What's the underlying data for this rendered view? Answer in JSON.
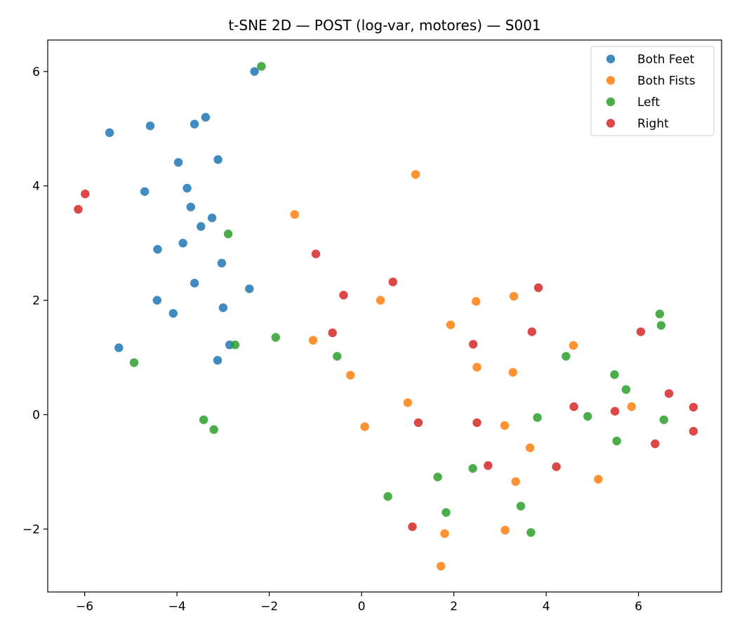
{
  "chart_data": {
    "type": "scatter",
    "title": "t-SNE 2D — POST (log-var, motores) — S001",
    "xlabel": "",
    "ylabel": "",
    "xlim": [
      -6.8,
      7.8
    ],
    "ylim": [
      -3.1,
      6.55
    ],
    "x_ticks": [
      -6,
      -4,
      -2,
      0,
      2,
      4,
      6
    ],
    "y_ticks": [
      -2,
      0,
      2,
      4,
      6
    ],
    "x_tick_labels": [
      "−6",
      "−4",
      "−2",
      "0",
      "2",
      "4",
      "6"
    ],
    "y_tick_labels": [
      "−2",
      "0",
      "2",
      "4",
      "6"
    ],
    "grid": false,
    "legend_position": "top-right",
    "series": [
      {
        "name": "Both Feet",
        "color": "#1f77b4",
        "points": [
          [
            -2.32,
            6.0
          ],
          [
            -3.38,
            5.2
          ],
          [
            -3.62,
            5.08
          ],
          [
            -4.58,
            5.05
          ],
          [
            -5.46,
            4.93
          ],
          [
            -3.11,
            4.46
          ],
          [
            -3.97,
            4.41
          ],
          [
            -4.7,
            3.9
          ],
          [
            -3.78,
            3.96
          ],
          [
            -3.7,
            3.63
          ],
          [
            -3.24,
            3.44
          ],
          [
            -3.48,
            3.29
          ],
          [
            -3.87,
            3.0
          ],
          [
            -4.42,
            2.89
          ],
          [
            -3.03,
            2.65
          ],
          [
            -3.62,
            2.3
          ],
          [
            -2.43,
            2.2
          ],
          [
            -4.43,
            2.0
          ],
          [
            -3.0,
            1.87
          ],
          [
            -4.08,
            1.77
          ],
          [
            -5.26,
            1.17
          ],
          [
            -2.86,
            1.22
          ],
          [
            -3.12,
            0.95
          ]
        ]
      },
      {
        "name": "Both Fists",
        "color": "#ff7f0e",
        "points": [
          [
            1.17,
            4.2
          ],
          [
            -1.45,
            3.5
          ],
          [
            0.41,
            2.0
          ],
          [
            3.3,
            2.07
          ],
          [
            2.48,
            1.98
          ],
          [
            1.93,
            1.57
          ],
          [
            -1.05,
            1.3
          ],
          [
            4.59,
            1.21
          ],
          [
            2.5,
            0.83
          ],
          [
            3.28,
            0.74
          ],
          [
            -0.24,
            0.69
          ],
          [
            1.0,
            0.21
          ],
          [
            5.85,
            0.14
          ],
          [
            0.07,
            -0.21
          ],
          [
            3.1,
            -0.19
          ],
          [
            3.65,
            -0.58
          ],
          [
            5.13,
            -1.13
          ],
          [
            3.34,
            -1.17
          ],
          [
            3.11,
            -2.02
          ],
          [
            1.8,
            -2.08
          ],
          [
            1.72,
            -2.65
          ]
        ]
      },
      {
        "name": "Left",
        "color": "#2ca02c",
        "points": [
          [
            -2.17,
            6.09
          ],
          [
            -2.89,
            3.16
          ],
          [
            6.46,
            1.76
          ],
          [
            6.49,
            1.56
          ],
          [
            -1.86,
            1.35
          ],
          [
            -2.74,
            1.22
          ],
          [
            -0.53,
            1.02
          ],
          [
            4.43,
            1.02
          ],
          [
            -4.93,
            0.91
          ],
          [
            5.48,
            0.7
          ],
          [
            5.73,
            0.44
          ],
          [
            3.81,
            -0.05
          ],
          [
            4.9,
            -0.03
          ],
          [
            -3.42,
            -0.09
          ],
          [
            6.55,
            -0.09
          ],
          [
            -3.2,
            -0.26
          ],
          [
            5.53,
            -0.46
          ],
          [
            2.41,
            -0.94
          ],
          [
            1.65,
            -1.09
          ],
          [
            0.57,
            -1.43
          ],
          [
            1.83,
            -1.71
          ],
          [
            3.45,
            -1.6
          ],
          [
            3.67,
            -2.06
          ]
        ]
      },
      {
        "name": "Right",
        "color": "#d62728",
        "points": [
          [
            -5.99,
            3.86
          ],
          [
            -6.14,
            3.59
          ],
          [
            -0.99,
            2.81
          ],
          [
            0.68,
            2.32
          ],
          [
            3.83,
            2.22
          ],
          [
            -0.39,
            2.09
          ],
          [
            -0.63,
            1.43
          ],
          [
            3.69,
            1.45
          ],
          [
            6.05,
            1.45
          ],
          [
            2.42,
            1.23
          ],
          [
            6.66,
            0.37
          ],
          [
            4.6,
            0.14
          ],
          [
            7.19,
            0.13
          ],
          [
            5.49,
            0.06
          ],
          [
            1.23,
            -0.14
          ],
          [
            2.5,
            -0.14
          ],
          [
            7.19,
            -0.29
          ],
          [
            6.36,
            -0.51
          ],
          [
            2.74,
            -0.89
          ],
          [
            4.22,
            -0.91
          ],
          [
            1.1,
            -1.96
          ]
        ]
      }
    ]
  }
}
